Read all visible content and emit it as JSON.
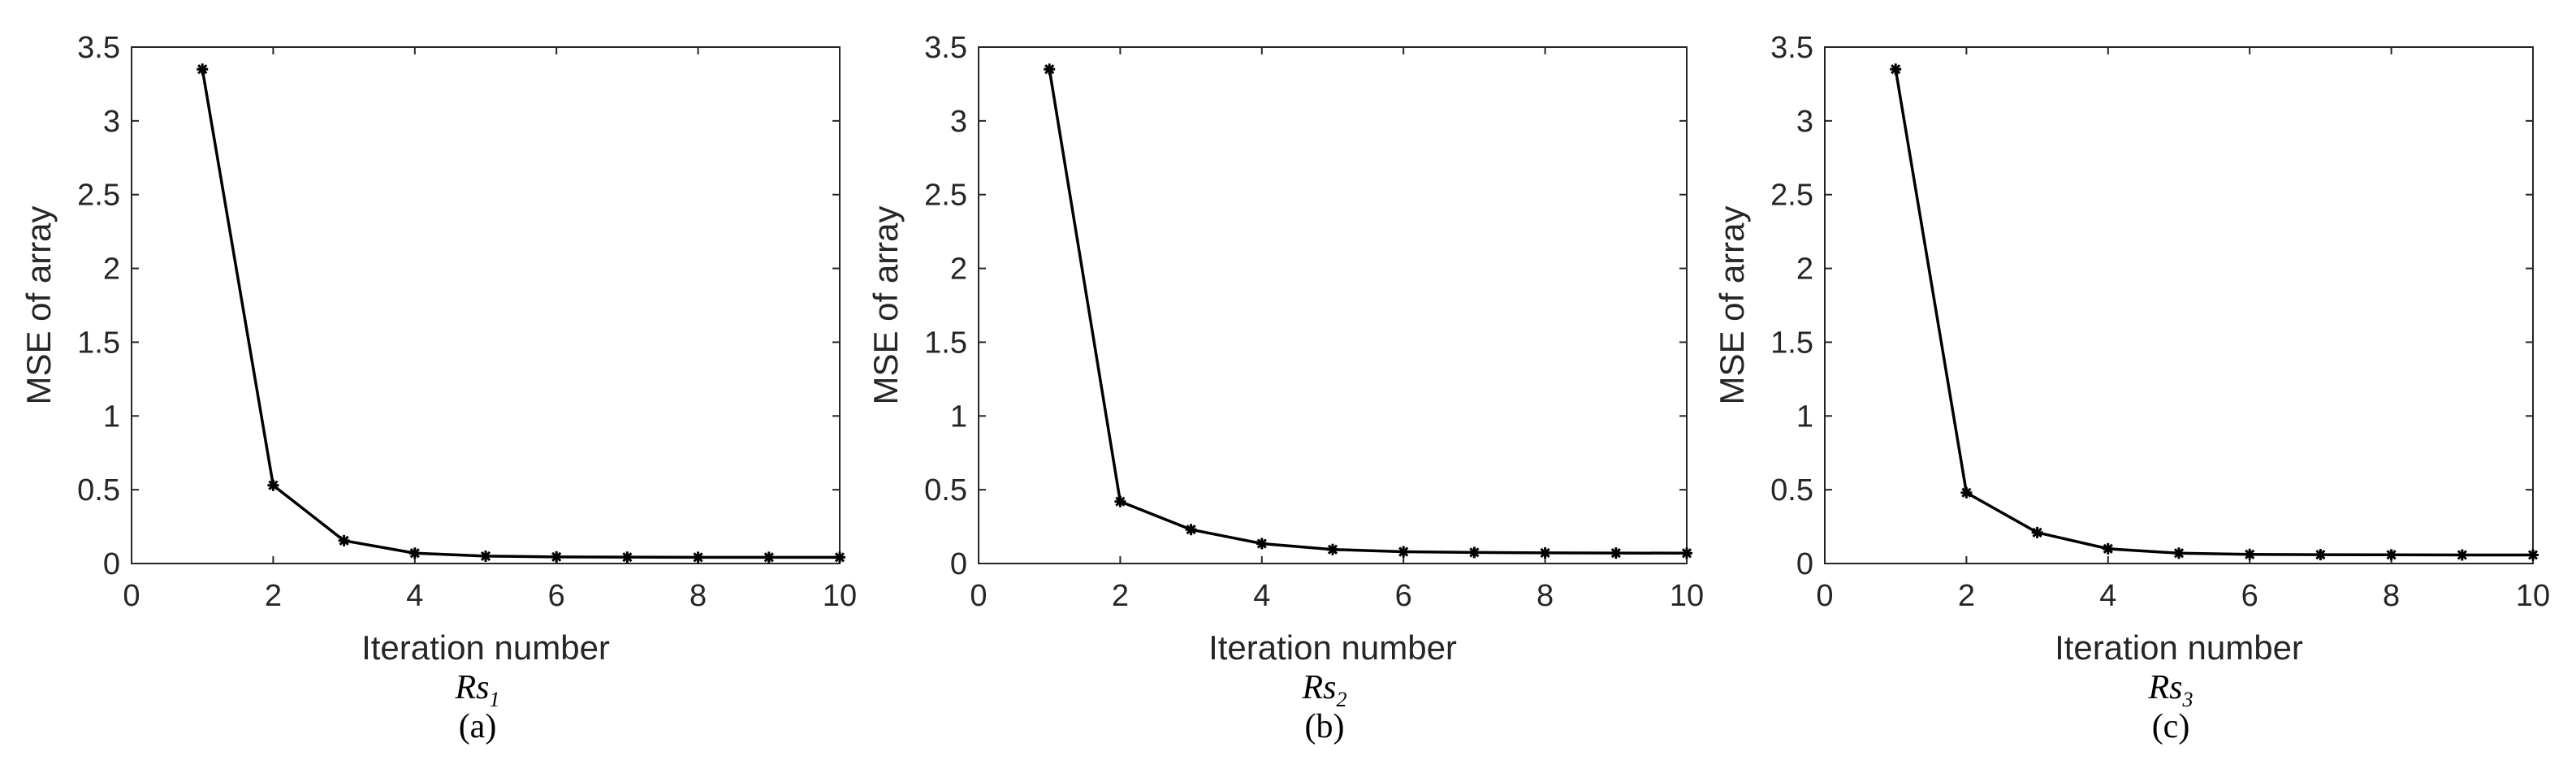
{
  "chart_data": [
    {
      "type": "line",
      "xlabel": "Iteration number",
      "ylabel": "MSE of array",
      "caption": {
        "main": "Rs",
        "subscript": "1",
        "letter": "(a)"
      },
      "xlim": [
        0,
        10
      ],
      "ylim": [
        0,
        3.5
      ],
      "xticks": [
        "0",
        "2",
        "4",
        "6",
        "8",
        "10"
      ],
      "yticks": [
        "0",
        "0.5",
        "1",
        "1.5",
        "2",
        "2.5",
        "3",
        "3.5"
      ],
      "grid": false,
      "marker": "asterisk",
      "series": [
        {
          "x": [
            1,
            2,
            3,
            4,
            5,
            6,
            7,
            8,
            9,
            10
          ],
          "y": [
            3.35,
            0.53,
            0.155,
            0.07,
            0.05,
            0.045,
            0.043,
            0.042,
            0.042,
            0.042
          ]
        }
      ]
    },
    {
      "type": "line",
      "xlabel": "Iteration number",
      "ylabel": "MSE of array",
      "caption": {
        "main": "Rs",
        "subscript": "2",
        "letter": "(b)"
      },
      "xlim": [
        0,
        10
      ],
      "ylim": [
        0,
        3.5
      ],
      "xticks": [
        "0",
        "2",
        "4",
        "6",
        "8",
        "10"
      ],
      "yticks": [
        "0",
        "0.5",
        "1",
        "1.5",
        "2",
        "2.5",
        "3",
        "3.5"
      ],
      "grid": false,
      "marker": "asterisk",
      "series": [
        {
          "x": [
            1,
            2,
            3,
            4,
            5,
            6,
            7,
            8,
            9,
            10
          ],
          "y": [
            3.35,
            0.42,
            0.23,
            0.135,
            0.095,
            0.08,
            0.075,
            0.072,
            0.071,
            0.07
          ]
        }
      ]
    },
    {
      "type": "line",
      "xlabel": "Iteration number",
      "ylabel": "MSE of array",
      "caption": {
        "main": "Rs",
        "subscript": "3",
        "letter": "(c)"
      },
      "xlim": [
        0,
        10
      ],
      "ylim": [
        0,
        3.5
      ],
      "xticks": [
        "0",
        "2",
        "4",
        "6",
        "8",
        "10"
      ],
      "yticks": [
        "0",
        "0.5",
        "1",
        "1.5",
        "2",
        "2.5",
        "3",
        "3.5"
      ],
      "grid": false,
      "marker": "asterisk",
      "series": [
        {
          "x": [
            1,
            2,
            3,
            4,
            5,
            6,
            7,
            8,
            9,
            10
          ],
          "y": [
            3.35,
            0.48,
            0.21,
            0.1,
            0.07,
            0.062,
            0.06,
            0.059,
            0.058,
            0.058
          ]
        }
      ]
    }
  ]
}
